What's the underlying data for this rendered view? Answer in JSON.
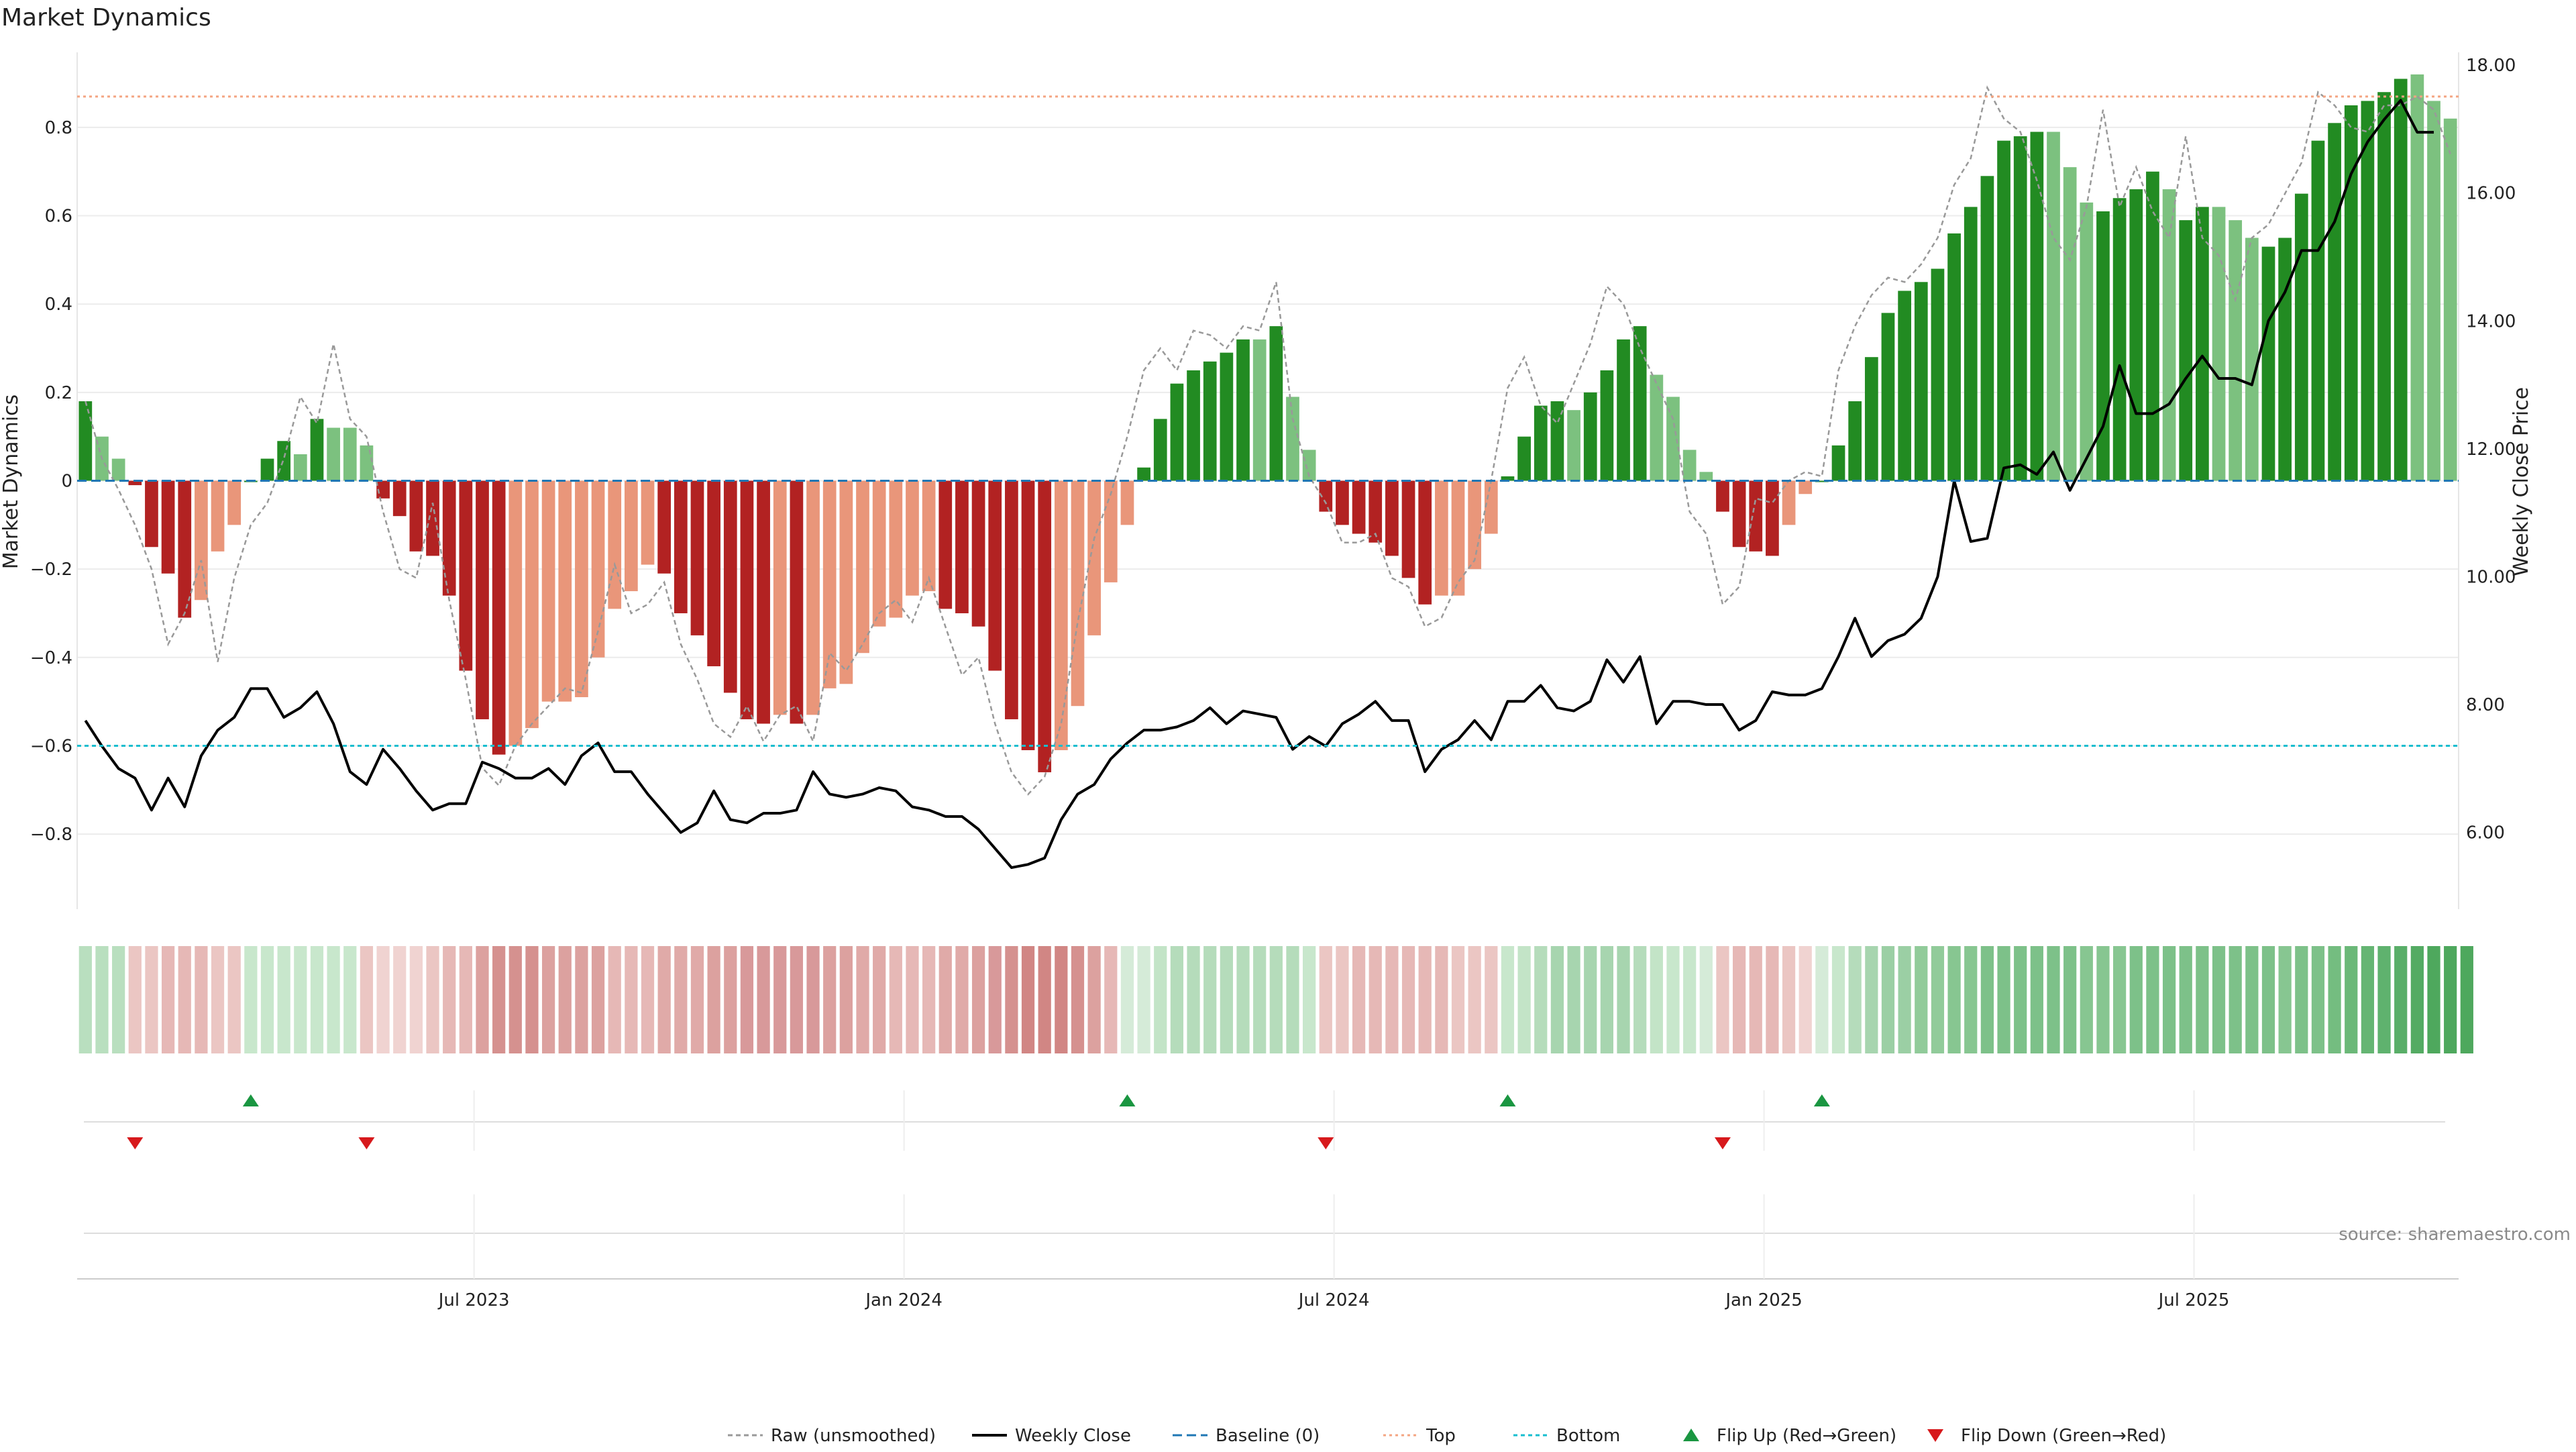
{
  "chart_data": {
    "type": "bar",
    "title": "Market Dynamics",
    "ylabel_left": "Market Dynamics",
    "ylabel_right": "Weekly Close Price",
    "source": "source: sharemaestro.com",
    "left_ylim": [
      -0.97,
      0.97
    ],
    "right_ylim": [
      4.8,
      18.2
    ],
    "left_ticks": [
      {
        "v": 0.8,
        "label": "0.8"
      },
      {
        "v": 0.6,
        "label": "0.6"
      },
      {
        "v": 0.4,
        "label": "0.4"
      },
      {
        "v": 0.2,
        "label": "0.2"
      },
      {
        "v": 0,
        "label": "0"
      },
      {
        "v": -0.2,
        "label": "−0.2"
      },
      {
        "v": -0.4,
        "label": "−0.4"
      },
      {
        "v": -0.6,
        "label": "−0.6"
      },
      {
        "v": -0.8,
        "label": "−0.8"
      }
    ],
    "right_ticks": [
      {
        "v": 18,
        "label": "18.00"
      },
      {
        "v": 16,
        "label": "16.00"
      },
      {
        "v": 14,
        "label": "14.00"
      },
      {
        "v": 12,
        "label": "12.00"
      },
      {
        "v": 10,
        "label": "10.00"
      },
      {
        "v": 8,
        "label": "8.00"
      },
      {
        "v": 6,
        "label": "6.00"
      }
    ],
    "x_ticks": [
      {
        "index": 23.5,
        "label": "Jul 2023"
      },
      {
        "index": 49.5,
        "label": "Jan 2024"
      },
      {
        "index": 75.5,
        "label": "Jul 2024"
      },
      {
        "index": 101.5,
        "label": "Jan 2025"
      },
      {
        "index": 127.5,
        "label": "Jul 2025"
      }
    ],
    "top_line": 0.87,
    "bottom_line": -0.6,
    "baseline": 0,
    "bars": [
      0.18,
      0.1,
      0.05,
      -0.01,
      -0.15,
      -0.21,
      -0.31,
      -0.27,
      -0.16,
      -0.1,
      0.0,
      0.05,
      0.09,
      0.06,
      0.14,
      0.12,
      0.12,
      0.08,
      -0.04,
      -0.08,
      -0.16,
      -0.17,
      -0.26,
      -0.43,
      -0.54,
      -0.62,
      -0.6,
      -0.56,
      -0.5,
      -0.5,
      -0.49,
      -0.4,
      -0.29,
      -0.25,
      -0.19,
      -0.21,
      -0.3,
      -0.35,
      -0.42,
      -0.48,
      -0.54,
      -0.55,
      -0.53,
      -0.55,
      -0.53,
      -0.47,
      -0.46,
      -0.39,
      -0.33,
      -0.31,
      -0.26,
      -0.25,
      -0.29,
      -0.3,
      -0.33,
      -0.43,
      -0.54,
      -0.61,
      -0.66,
      -0.61,
      -0.51,
      -0.35,
      -0.23,
      -0.1,
      0.03,
      0.14,
      0.22,
      0.25,
      0.27,
      0.29,
      0.32,
      0.32,
      0.35,
      0.19,
      0.07,
      -0.07,
      -0.1,
      -0.12,
      -0.14,
      -0.17,
      -0.22,
      -0.28,
      -0.26,
      -0.26,
      -0.2,
      -0.12,
      0.01,
      0.1,
      0.17,
      0.18,
      0.16,
      0.2,
      0.25,
      0.32,
      0.35,
      0.24,
      0.19,
      0.07,
      0.02,
      -0.07,
      -0.15,
      -0.16,
      -0.17,
      -0.1,
      -0.03,
      0.0,
      0.08,
      0.18,
      0.28,
      0.38,
      0.43,
      0.45,
      0.48,
      0.56,
      0.62,
      0.69,
      0.77,
      0.78,
      0.79,
      0.79,
      0.71,
      0.63,
      0.61,
      0.64,
      0.66,
      0.7,
      0.66,
      0.59,
      0.62,
      0.62,
      0.59,
      0.55,
      0.53,
      0.55,
      0.65,
      0.77,
      0.81,
      0.85,
      0.86,
      0.88,
      0.91,
      0.92,
      0.86,
      0.82
    ],
    "bar_shade": [
      "dark",
      "light",
      "light",
      "dark",
      "dark",
      "dark",
      "dark",
      "light",
      "light",
      "light",
      "dark",
      "dark",
      "dark",
      "light",
      "dark",
      "light",
      "light",
      "light",
      "dark",
      "dark",
      "dark",
      "dark",
      "dark",
      "dark",
      "dark",
      "dark",
      "light",
      "light",
      "light",
      "light",
      "light",
      "light",
      "light",
      "light",
      "light",
      "dark",
      "dark",
      "dark",
      "dark",
      "dark",
      "dark",
      "dark",
      "light",
      "dark",
      "light",
      "light",
      "light",
      "light",
      "light",
      "light",
      "light",
      "light",
      "dark",
      "dark",
      "dark",
      "dark",
      "dark",
      "dark",
      "dark",
      "light",
      "light",
      "light",
      "light",
      "light",
      "dark",
      "dark",
      "dark",
      "dark",
      "dark",
      "dark",
      "dark",
      "light",
      "dark",
      "light",
      "light",
      "dark",
      "dark",
      "dark",
      "dark",
      "dark",
      "dark",
      "dark",
      "light",
      "light",
      "light",
      "light",
      "dark",
      "dark",
      "dark",
      "dark",
      "light",
      "dark",
      "dark",
      "dark",
      "dark",
      "light",
      "light",
      "light",
      "light",
      "dark",
      "dark",
      "dark",
      "dark",
      "light",
      "light",
      "dark",
      "dark",
      "dark",
      "dark",
      "dark",
      "dark",
      "dark",
      "dark",
      "dark",
      "dark",
      "dark",
      "dark",
      "dark",
      "dark",
      "light",
      "light",
      "light",
      "dark",
      "dark",
      "dark",
      "dark",
      "light",
      "dark",
      "dark",
      "light",
      "light",
      "light",
      "dark",
      "dark",
      "dark",
      "dark",
      "dark",
      "dark",
      "dark",
      "dark",
      "dark",
      "light",
      "light"
    ],
    "raw": [
      0.18,
      0.05,
      -0.02,
      -0.1,
      -0.2,
      -0.37,
      -0.3,
      -0.18,
      -0.41,
      -0.22,
      -0.1,
      -0.05,
      0.05,
      0.19,
      0.13,
      0.31,
      0.14,
      0.1,
      -0.07,
      -0.2,
      -0.22,
      -0.05,
      -0.27,
      -0.45,
      -0.65,
      -0.69,
      -0.6,
      -0.55,
      -0.51,
      -0.47,
      -0.48,
      -0.34,
      -0.19,
      -0.3,
      -0.28,
      -0.23,
      -0.37,
      -0.45,
      -0.55,
      -0.58,
      -0.51,
      -0.59,
      -0.53,
      -0.51,
      -0.59,
      -0.39,
      -0.43,
      -0.37,
      -0.3,
      -0.27,
      -0.32,
      -0.22,
      -0.33,
      -0.44,
      -0.4,
      -0.55,
      -0.66,
      -0.71,
      -0.67,
      -0.55,
      -0.32,
      -0.13,
      -0.03,
      0.1,
      0.25,
      0.3,
      0.25,
      0.34,
      0.33,
      0.3,
      0.35,
      0.34,
      0.45,
      0.14,
      0.01,
      -0.05,
      -0.14,
      -0.14,
      -0.12,
      -0.22,
      -0.24,
      -0.33,
      -0.31,
      -0.23,
      -0.18,
      0.0,
      0.21,
      0.28,
      0.17,
      0.13,
      0.22,
      0.31,
      0.44,
      0.4,
      0.3,
      0.22,
      0.14,
      -0.07,
      -0.12,
      -0.28,
      -0.24,
      -0.04,
      -0.05,
      0.0,
      0.02,
      0.01,
      0.25,
      0.35,
      0.42,
      0.46,
      0.45,
      0.49,
      0.55,
      0.67,
      0.73,
      0.89,
      0.82,
      0.79,
      0.68,
      0.55,
      0.5,
      0.62,
      0.84,
      0.62,
      0.71,
      0.61,
      0.55,
      0.78,
      0.55,
      0.51,
      0.41,
      0.55,
      0.58,
      0.65,
      0.72,
      0.88,
      0.85,
      0.8,
      0.79,
      0.85,
      0.85,
      0.87,
      0.84,
      0.74
    ],
    "weekly_close": [
      7.75,
      7.35,
      7.0,
      6.85,
      6.35,
      6.85,
      6.4,
      7.2,
      7.6,
      7.8,
      8.25,
      8.25,
      7.8,
      7.95,
      8.2,
      7.7,
      6.95,
      6.75,
      7.3,
      7.0,
      6.65,
      6.35,
      6.45,
      6.45,
      7.1,
      7.0,
      6.85,
      6.85,
      7.0,
      6.75,
      7.2,
      7.4,
      6.95,
      6.95,
      6.6,
      6.3,
      6.0,
      6.15,
      6.65,
      6.2,
      6.15,
      6.3,
      6.3,
      6.35,
      6.95,
      6.6,
      6.55,
      6.6,
      6.7,
      6.65,
      6.4,
      6.35,
      6.25,
      6.25,
      6.05,
      5.75,
      5.45,
      5.5,
      5.6,
      6.2,
      6.6,
      6.75,
      7.15,
      7.4,
      7.6,
      7.6,
      7.65,
      7.75,
      7.95,
      7.7,
      7.9,
      7.85,
      7.8,
      7.3,
      7.5,
      7.35,
      7.7,
      7.85,
      8.05,
      7.75,
      7.75,
      6.95,
      7.3,
      7.45,
      7.75,
      7.45,
      8.05,
      8.05,
      8.3,
      7.95,
      7.9,
      8.05,
      8.7,
      8.35,
      8.75,
      7.7,
      8.05,
      8.05,
      8.0,
      8.0,
      7.6,
      7.75,
      8.2,
      8.15,
      8.15,
      8.25,
      8.75,
      9.35,
      8.75,
      9.0,
      9.1,
      9.35,
      10.0,
      11.5,
      10.55,
      10.6,
      11.7,
      11.75,
      11.6,
      11.95,
      11.35,
      11.85,
      12.35,
      13.3,
      12.55,
      12.55,
      12.7,
      13.1,
      13.45,
      13.1,
      13.1,
      13.0,
      14.0,
      14.45,
      15.1,
      15.1,
      15.55,
      16.3,
      16.8,
      17.15,
      17.45,
      16.95,
      16.95
    ],
    "flip_up": [
      10,
      63,
      86,
      105
    ],
    "flip_down": [
      3,
      17,
      75,
      99
    ],
    "strip_colors": [
      "#b9dfbf",
      "#b9dfbf",
      "#b9dfbf",
      "#ebc6c3",
      "#ebc6c3",
      "#e6b8b6",
      "#e6b8b6",
      "#e6b8b6",
      "#ebc6c3",
      "#ebc6c3",
      "#c8e7cc",
      "#c8e7cc",
      "#c8e7cc",
      "#c8e7cc",
      "#c8e7cc",
      "#c8e7cc",
      "#c8e7cc",
      "#ebc6c3",
      "#f0d3d1",
      "#f0d3d1",
      "#f0d3d1",
      "#ebc6c3",
      "#e6b8b6",
      "#e6b8b6",
      "#dca19f",
      "#d5918f",
      "#d5918f",
      "#d5918f",
      "#dca19f",
      "#dca19f",
      "#dca19f",
      "#dca19f",
      "#e6b8b6",
      "#e6b8b6",
      "#e6b8b6",
      "#e0aaa8",
      "#e0aaa8",
      "#e0aaa8",
      "#dca19f",
      "#dca19f",
      "#d8999a",
      "#d8999a",
      "#d8999a",
      "#d8999a",
      "#d8999a",
      "#dca19f",
      "#dca19f",
      "#e0aaa8",
      "#e0aaa8",
      "#e6b8b6",
      "#e6b8b6",
      "#e6b8b6",
      "#e0aaa8",
      "#e0aaa8",
      "#dca19f",
      "#d8999a",
      "#d5918f",
      "#d18684",
      "#d18684",
      "#d18684",
      "#d5918f",
      "#dca19f",
      "#e6b8b6",
      "#d5ebd8",
      "#d5ebd8",
      "#c3e4c7",
      "#b5dcbb",
      "#b5dcbb",
      "#b5dcbb",
      "#b5dcbb",
      "#b5dcbb",
      "#b5dcbb",
      "#b5dcbb",
      "#b5dcbb",
      "#c8e7cc",
      "#ebc6c3",
      "#ebc6c3",
      "#e6b8b6",
      "#e6b8b6",
      "#e6b8b6",
      "#e6b8b6",
      "#e6b8b6",
      "#e6b8b6",
      "#ebc6c3",
      "#ebc6c3",
      "#ebc6c3",
      "#c8e7cc",
      "#c3e4c7",
      "#b5dcbb",
      "#a7d5af",
      "#a7d5af",
      "#a7d5af",
      "#a7d5af",
      "#a7d5af",
      "#b5dcbb",
      "#c3e4c7",
      "#c8e7cc",
      "#c8e7cc",
      "#d5ebd8",
      "#ebc6c3",
      "#e6b8b6",
      "#e6b8b6",
      "#e6b8b6",
      "#ebc6c3",
      "#f0d3d1",
      "#d5ebd8",
      "#c8e7cc",
      "#b5dcbb",
      "#a7d5af",
      "#9bcfa4",
      "#9bcfa4",
      "#91cb9a",
      "#91cb9a",
      "#87c691",
      "#87c691",
      "#7dc189",
      "#7dc189",
      "#7dc189",
      "#7dc189",
      "#7dc189",
      "#7dc189",
      "#87c691",
      "#87c691",
      "#87c691",
      "#7dc189",
      "#7dc189",
      "#7dc189",
      "#7dc189",
      "#7dc189",
      "#7dc189",
      "#7dc189",
      "#7dc189",
      "#7dc189",
      "#87c691",
      "#7dc189",
      "#7dc189",
      "#74bd80",
      "#6bb878",
      "#65b573",
      "#5fb26e",
      "#59ae68",
      "#54ab63",
      "#4ea85d",
      "#4ea85d",
      "#4ea85d"
    ],
    "colors": {
      "bar_pos_dark": "#228b22",
      "bar_pos_light": "#7cc17f",
      "bar_neg_dark": "#b22222",
      "bar_neg_light": "#e9967a",
      "close_line": "#000000",
      "raw_line": "#999999",
      "baseline": "#1f77b4",
      "top_line": "#f4a582",
      "bottom_line": "#17becf",
      "flip_up": "#1a9641",
      "flip_down": "#d7191c"
    },
    "legend": [
      {
        "key": "raw",
        "label": "Raw (unsmoothed)"
      },
      {
        "key": "close",
        "label": "Weekly Close"
      },
      {
        "key": "baseline",
        "label": "Baseline (0)"
      },
      {
        "key": "top",
        "label": "Top"
      },
      {
        "key": "bottom",
        "label": "Bottom"
      },
      {
        "key": "flip_up",
        "label": "Flip Up (Red→Green)"
      },
      {
        "key": "flip_down",
        "label": "Flip Down (Green→Red)"
      }
    ]
  }
}
